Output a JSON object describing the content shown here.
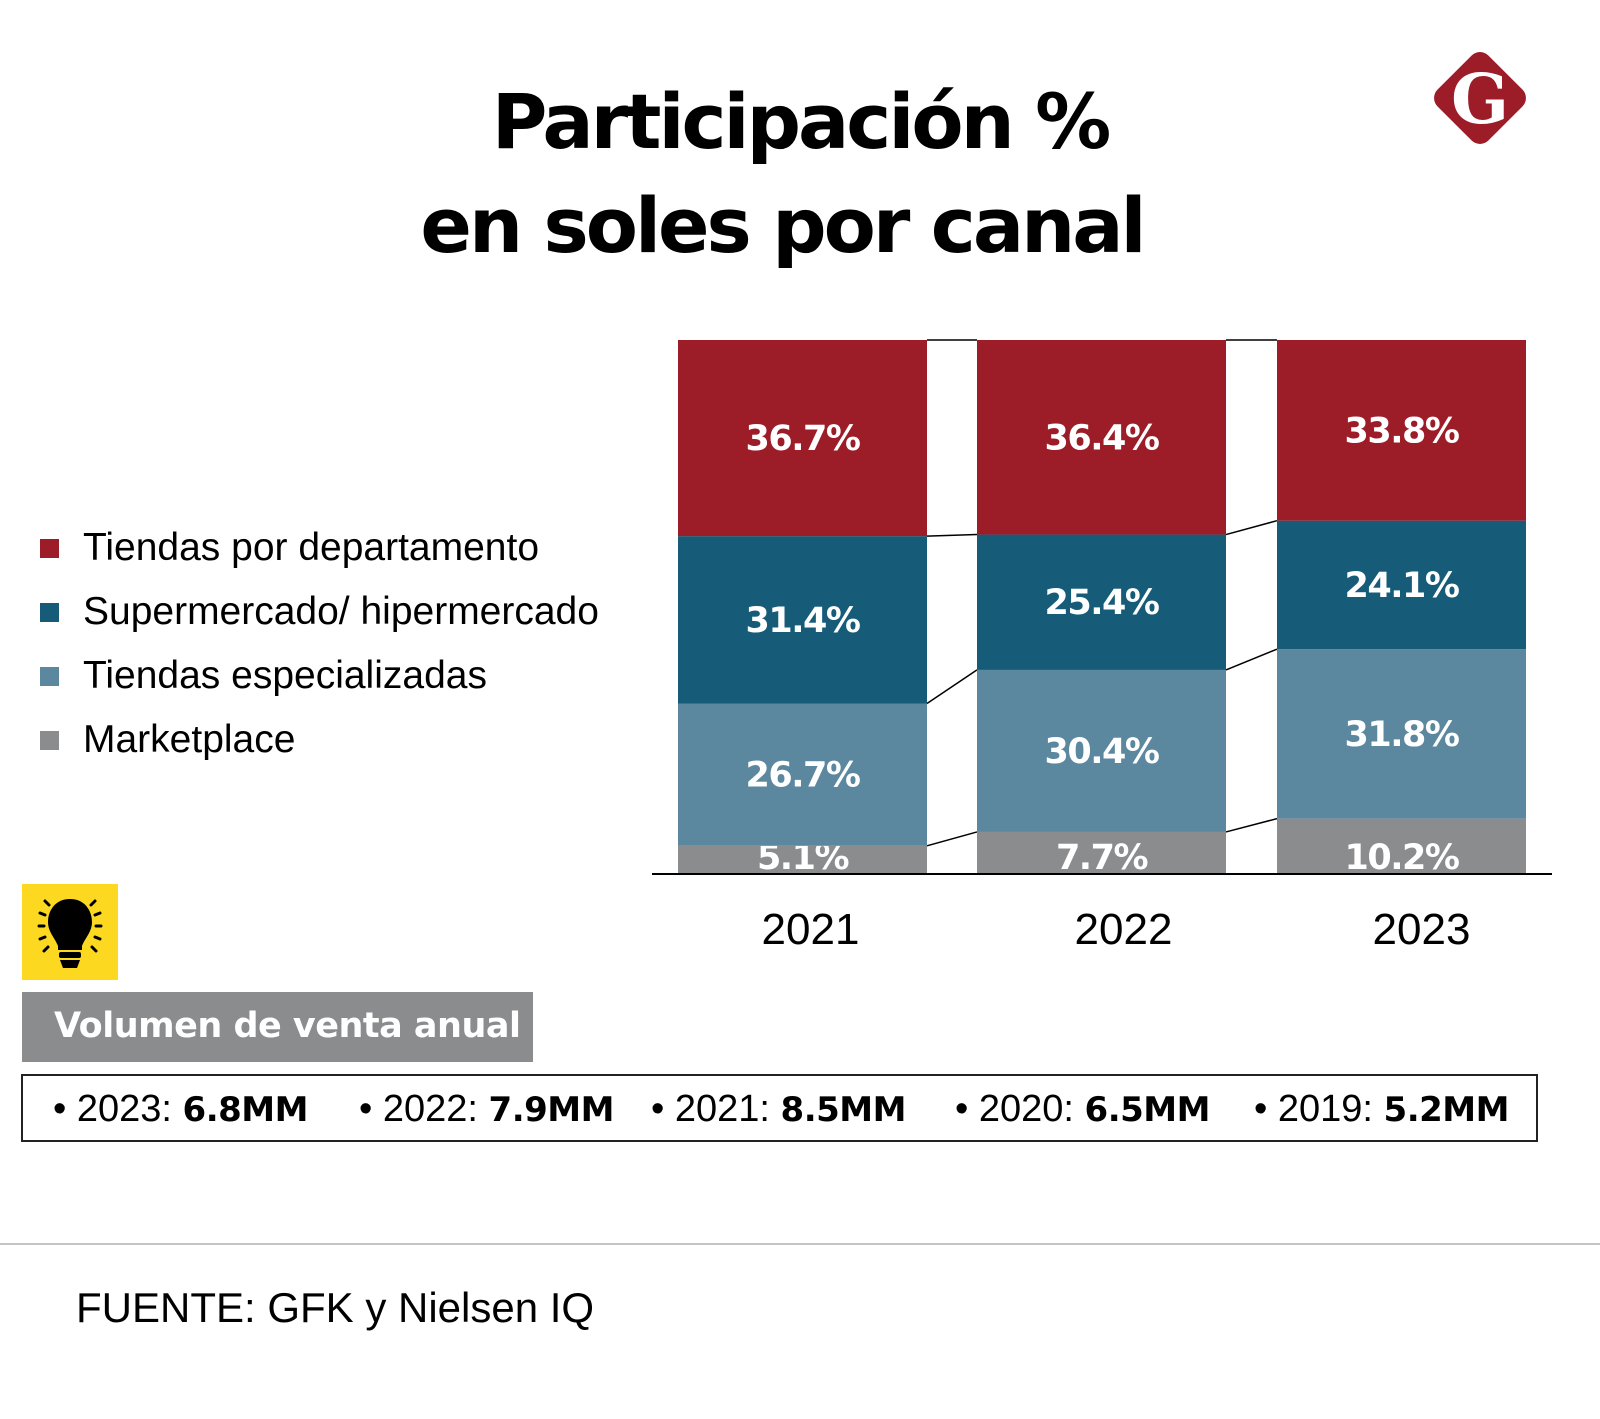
{
  "header": {
    "title_line1": "Participación %",
    "title_line2": "en soles por canal",
    "logo_letter": "G",
    "logo_color": "#9c1c28"
  },
  "legend": [
    {
      "label": "Tiendas por departamento",
      "color": "#9c1c28"
    },
    {
      "label": "Supermercado/ hipermercado",
      "color": "#165c78"
    },
    {
      "label": "Tiendas especializadas",
      "color": "#5b879f"
    },
    {
      "label": "Marketplace",
      "color": "#8b8c8e"
    }
  ],
  "chart_data": {
    "type": "bar",
    "stacked": true,
    "title": "Participación % en soles por canal",
    "xlabel": "",
    "ylabel": "",
    "ylim": [
      0,
      100
    ],
    "grid": false,
    "legend_position": "left",
    "categories": [
      "2021",
      "2022",
      "2023"
    ],
    "series": [
      {
        "name": "Marketplace",
        "color": "#8b8c8e",
        "values": [
          5.1,
          7.7,
          10.2
        ],
        "labels": [
          "5.1%",
          "7.7%",
          "10.2%"
        ]
      },
      {
        "name": "Tiendas especializadas",
        "color": "#5b879f",
        "values": [
          26.7,
          30.4,
          31.8
        ],
        "labels": [
          "26.7%",
          "30.4%",
          "31.8%"
        ]
      },
      {
        "name": "Supermercado/ hipermercado",
        "color": "#165c78",
        "values": [
          31.4,
          25.4,
          24.1
        ],
        "labels": [
          "31.4%",
          "25.4%",
          "24.1%"
        ]
      },
      {
        "name": "Tiendas por departamento",
        "color": "#9c1c28",
        "values": [
          36.7,
          36.4,
          33.8
        ],
        "labels": [
          "36.7%",
          "36.4%",
          "33.8%"
        ]
      }
    ]
  },
  "tip": {
    "icon": "lightbulb-icon",
    "color": "#fcd820"
  },
  "volume": {
    "heading": "Volumen de venta anual",
    "items": [
      {
        "year": "2023:",
        "value": "6.8MM"
      },
      {
        "year": "2022:",
        "value": "7.9MM"
      },
      {
        "year": "2021:",
        "value": "8.5MM"
      },
      {
        "year": "2020:",
        "value": "6.5MM"
      },
      {
        "year": "2019:",
        "value": "5.2MM"
      }
    ]
  },
  "footer": {
    "source": "FUENTE: GFK y Nielsen IQ"
  }
}
